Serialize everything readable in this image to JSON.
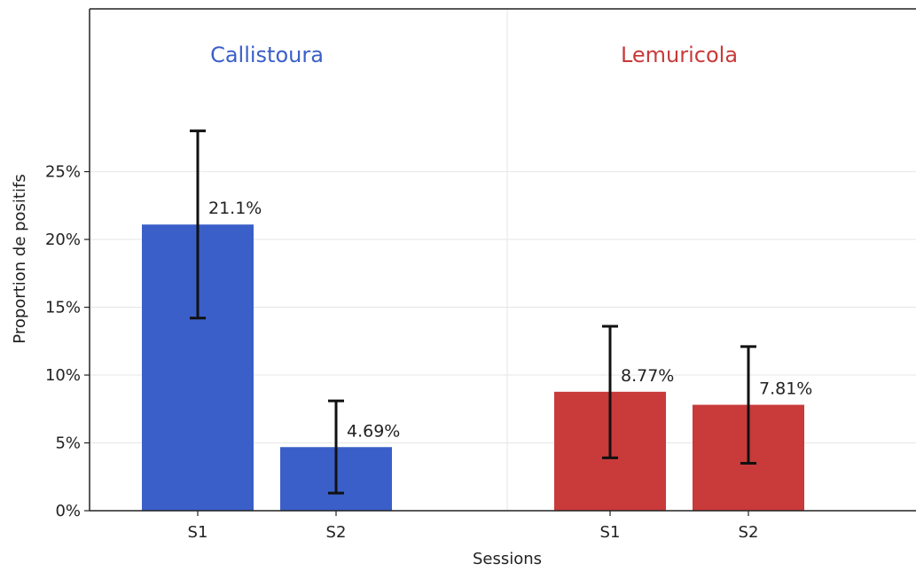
{
  "chart_data": {
    "type": "bar",
    "xlabel": "Sessions",
    "ylabel": "Proportion de positifs",
    "ylim": [
      0,
      37
    ],
    "yticks": [
      {
        "value": 0,
        "label": "0%"
      },
      {
        "value": 5,
        "label": "5%"
      },
      {
        "value": 10,
        "label": "10%"
      },
      {
        "value": 15,
        "label": "15%"
      },
      {
        "value": 20,
        "label": "20%"
      },
      {
        "value": 25,
        "label": "25%"
      }
    ],
    "grid": true,
    "groups": [
      {
        "name": "Callistoura",
        "color": "#3b5fc9",
        "bars": [
          {
            "category": "S1",
            "value": 21.1,
            "label": "21.1%",
            "err_low": 14.2,
            "err_high": 28.0
          },
          {
            "category": "S2",
            "value": 4.69,
            "label": "4.69%",
            "err_low": 1.3,
            "err_high": 8.1
          }
        ]
      },
      {
        "name": "Lemuricola",
        "color": "#c93a3a",
        "bars": [
          {
            "category": "S1",
            "value": 8.77,
            "label": "8.77%",
            "err_low": 3.9,
            "err_high": 13.6
          },
          {
            "category": "S2",
            "value": 7.81,
            "label": "7.81%",
            "err_low": 3.5,
            "err_high": 12.1
          }
        ]
      }
    ]
  }
}
